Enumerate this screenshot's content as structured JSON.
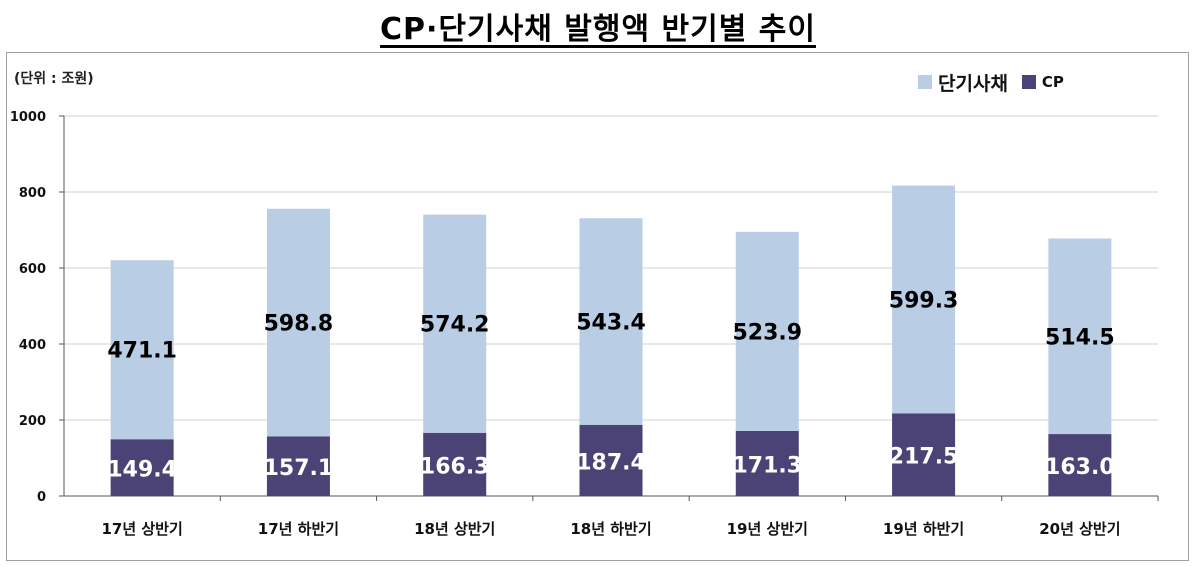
{
  "title": "CP·단기사채 발행액 반기별 추이",
  "unit_note": "(단위 : 조원)",
  "colors": {
    "cp": "#4B4276",
    "stb": "#B9CDE4",
    "grid": "#d0d0d0",
    "axis": "#555555"
  },
  "chart_data": {
    "type": "bar",
    "stacked": true,
    "title": "CP·단기사채 발행액 반기별 추이",
    "categories": [
      "17년 상반기",
      "17년 하반기",
      "18년 상반기",
      "18년 하반기",
      "19년 상반기",
      "19년 하반기",
      "20년 상반기"
    ],
    "series": [
      {
        "name": "CP",
        "values": [
          149.4,
          157.1,
          166.3,
          187.4,
          171.3,
          217.5,
          163.0
        ],
        "labels": [
          "149.4",
          "157.1",
          "166.3",
          "187.4",
          "171.3",
          "217.5",
          "163.0"
        ]
      },
      {
        "name": "단기사채",
        "values": [
          471.1,
          598.8,
          574.2,
          543.4,
          523.9,
          599.3,
          514.5
        ],
        "labels": [
          "471.1",
          "598.8",
          "574.2",
          "543.4",
          "523.9",
          "599.3",
          "514.5"
        ]
      }
    ],
    "ylim": [
      0,
      1000
    ],
    "yticks": [
      0,
      200,
      400,
      600,
      800,
      1000
    ],
    "grid": true,
    "legend": "top-right",
    "legend_order": [
      "단기사채",
      "CP"
    ]
  }
}
